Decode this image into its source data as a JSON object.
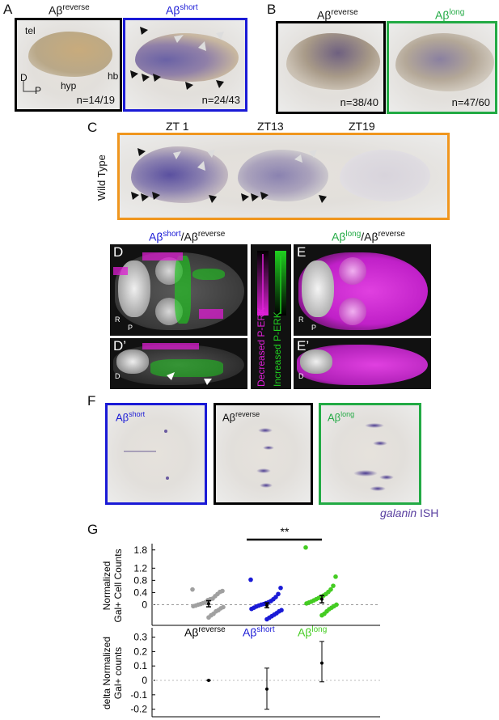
{
  "panels": {
    "A": {
      "label": "A",
      "left_title_main": "Aβ",
      "left_title_sup": "reverse",
      "right_title_main": "Aβ",
      "right_title_sup": "short",
      "left_count": "n=14/19",
      "right_count": "n=24/43",
      "tel": "tel",
      "hyp": "hyp",
      "hb": "hb",
      "axis_d": "D",
      "axis_p": "P",
      "colors": {
        "left_frame": "#000000",
        "right_frame": "#1a1ad6"
      }
    },
    "B": {
      "label": "B",
      "left_title_main": "Aβ",
      "left_title_sup": "reverse",
      "right_title_main": "Aβ",
      "right_title_sup": "long",
      "left_count": "n=38/40",
      "right_count": "n=47/60",
      "colors": {
        "left_frame": "#000000",
        "right_frame": "#22aa44"
      }
    },
    "C": {
      "label": "C",
      "side_label": "Wild Type",
      "zt1": "ZT 1",
      "zt13": "ZT13",
      "zt19": "ZT19",
      "colors": {
        "frame": "#f0961e"
      }
    },
    "D": {
      "label": "D",
      "label_prime": "D’",
      "title_a_main": "Aβ",
      "title_a_sup": "short",
      "title_sep": "/Aβ",
      "title_b_sup": "reverse",
      "axis_r": "R",
      "axis_p": "P",
      "axis_d": "D"
    },
    "E": {
      "label": "E",
      "label_prime": "E’",
      "title_a_main": "Aβ",
      "title_a_sup": "long",
      "title_sep": "/Aβ",
      "title_b_sup": "reverse",
      "axis_r": "R",
      "axis_p": "P",
      "axis_d": "D"
    },
    "legend": {
      "decreased": "Decreased P-ERK",
      "increased": "Increased P-ERK",
      "colors": {
        "decreased": "#e020d8",
        "increased": "#20d020"
      }
    },
    "F": {
      "label": "F",
      "t1_main": "Aβ",
      "t1_sup": "short",
      "t2_main": "Aβ",
      "t2_sup": "reverse",
      "t3_main": "Aβ",
      "t3_sup": "long",
      "caption_italic": "galanin",
      "caption_rest": " ISH"
    },
    "G": {
      "label": "G",
      "significance": "**"
    }
  },
  "chart_data": [
    {
      "type": "scatter",
      "ylabel": "Normalized Gal+ Cell Counts",
      "categories": [
        "Aβ reverse",
        "Aβ short",
        "Aβ long"
      ],
      "category_colors": [
        "#a0a0a0",
        "#1a1ad6",
        "#44cc22"
      ],
      "y_ticks": [
        1.8,
        1.2,
        0.8,
        0.4,
        0
      ],
      "ylim": [
        -0.6,
        1.9
      ],
      "reference_line": 0,
      "series": [
        {
          "values": [
            0.5,
            0.45,
            0.42,
            0.35,
            0.28,
            0.2,
            0.18,
            0.15,
            0.08,
            0.05,
            0.02,
            0.0,
            -0.03,
            -0.05,
            -0.08,
            -0.12,
            -0.18,
            -0.22,
            -0.3,
            -0.35,
            -0.42
          ],
          "mean": 0.03,
          "err": 0.1
        },
        {
          "values": [
            0.82,
            0.55,
            0.35,
            0.25,
            0.18,
            0.12,
            0.08,
            0.05,
            0.02,
            0.0,
            -0.03,
            -0.06,
            -0.1,
            -0.14,
            -0.18,
            -0.22,
            -0.28,
            -0.33,
            -0.38,
            -0.43,
            -0.48
          ],
          "mean": -0.02,
          "err": 0.08
        },
        {
          "values": [
            1.88,
            0.92,
            0.62,
            0.5,
            0.42,
            0.35,
            0.3,
            0.26,
            0.22,
            0.18,
            0.14,
            0.1,
            0.07,
            0.04,
            0.0,
            -0.05,
            -0.1,
            -0.15,
            -0.22,
            -0.3,
            -0.35
          ],
          "mean": 0.18,
          "err": 0.12
        }
      ],
      "tick_labels": [
        {
          "main": "Aβ",
          "sup": "reverse"
        },
        {
          "main": "Aβ",
          "sup": "short"
        },
        {
          "main": "Aβ",
          "sup": "long"
        }
      ]
    },
    {
      "type": "scatter",
      "ylabel": "delta Normalized Gal+ counts",
      "y_ticks": [
        0.3,
        0.2,
        0.1,
        0,
        -0.1,
        -0.2
      ],
      "tick_labels_text": [
        "0.3",
        "0.2",
        "0.1",
        "0",
        "-0.1",
        "-0.2"
      ],
      "ylim": [
        -0.23,
        0.32
      ],
      "reference_line": 0,
      "points": [
        {
          "category": 0,
          "value": 0.0,
          "err_low": 0.0,
          "err_high": 0.0
        },
        {
          "category": 1,
          "value": -0.06,
          "err_low": -0.2,
          "err_high": 0.085
        },
        {
          "category": 2,
          "value": 0.12,
          "err_low": -0.01,
          "err_high": 0.27
        }
      ]
    }
  ]
}
